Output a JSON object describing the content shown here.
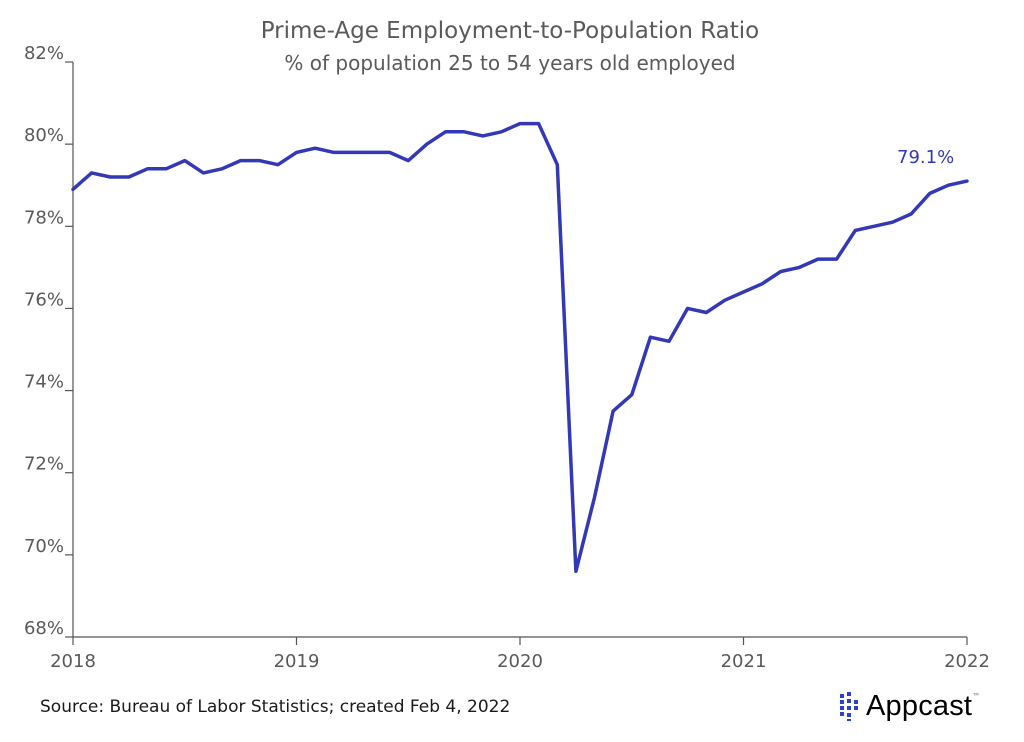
{
  "colors": {
    "line": "#3338b6",
    "axis": "#555555",
    "text": "#5a5a5a",
    "brand": "#2f42c4"
  },
  "chart_data": {
    "type": "line",
    "title": "Prime-Age Employment-to-Population Ratio",
    "subtitle": "% of population 25 to 54 years old employed",
    "xlabel": "",
    "ylabel": "",
    "ylim": [
      68,
      82
    ],
    "xlim": [
      "2018-01",
      "2022-01"
    ],
    "y_ticks": [
      "68%",
      "70%",
      "72%",
      "74%",
      "76%",
      "78%",
      "80%",
      "82%"
    ],
    "x_ticks": [
      "2018",
      "2019",
      "2020",
      "2021",
      "2022"
    ],
    "grid": false,
    "series": [
      {
        "x": [
          "2018-01",
          "2018-02",
          "2018-03",
          "2018-04",
          "2018-05",
          "2018-06",
          "2018-07",
          "2018-08",
          "2018-09",
          "2018-10",
          "2018-11",
          "2018-12",
          "2019-01",
          "2019-02",
          "2019-03",
          "2019-04",
          "2019-05",
          "2019-06",
          "2019-07",
          "2019-08",
          "2019-09",
          "2019-10",
          "2019-11",
          "2019-12",
          "2020-01",
          "2020-02",
          "2020-03",
          "2020-04",
          "2020-05",
          "2020-06",
          "2020-07",
          "2020-08",
          "2020-09",
          "2020-10",
          "2020-11",
          "2020-12",
          "2021-01",
          "2021-02",
          "2021-03",
          "2021-04",
          "2021-05",
          "2021-06",
          "2021-07",
          "2021-08",
          "2021-09",
          "2021-10",
          "2021-11",
          "2021-12",
          "2022-01"
        ],
        "values": [
          78.9,
          79.3,
          79.2,
          79.2,
          79.4,
          79.4,
          79.6,
          79.3,
          79.4,
          79.6,
          79.6,
          79.5,
          79.8,
          79.9,
          79.8,
          79.8,
          79.8,
          79.8,
          79.6,
          80.0,
          80.3,
          80.3,
          80.2,
          80.3,
          80.5,
          80.5,
          79.5,
          69.6,
          71.4,
          73.5,
          73.9,
          75.3,
          75.2,
          76.0,
          75.9,
          76.2,
          76.4,
          76.6,
          76.9,
          77.0,
          77.2,
          77.2,
          77.9,
          78.0,
          78.1,
          78.3,
          78.8,
          79.0,
          79.1
        ]
      }
    ],
    "annotations": [
      {
        "text": "79.1%",
        "x": "2022-01",
        "y": 79.1
      }
    ]
  },
  "footer": {
    "source": "Source: Bureau of Labor Statistics; created Feb 4, 2022"
  },
  "brand": {
    "name": "Appcast",
    "tm": "™"
  }
}
